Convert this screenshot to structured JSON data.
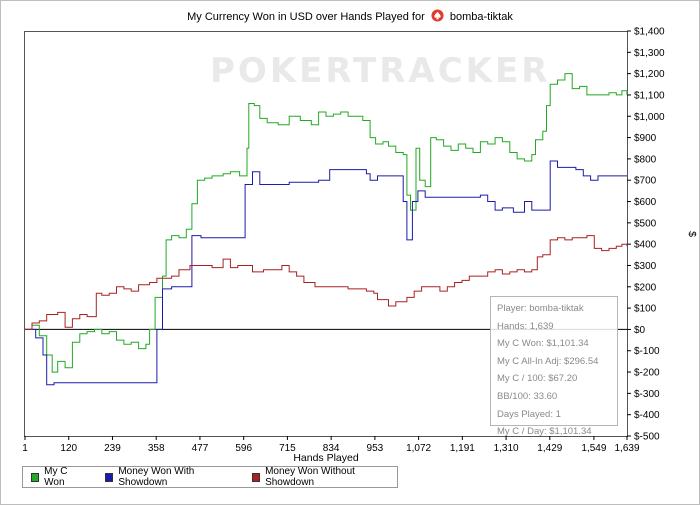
{
  "title_prefix": "My Currency Won in USD over Hands Played for",
  "player_name": "bomba-tiktak",
  "watermark": "POKERTRACKER",
  "chart_data": {
    "type": "line",
    "xlabel": "Hands Played",
    "ylabel": "$",
    "xlim": [
      1,
      1639
    ],
    "ylim": [
      -500,
      1400
    ],
    "x_ticks": [
      1,
      120,
      239,
      358,
      477,
      596,
      715,
      834,
      953,
      1072,
      1191,
      1310,
      1429,
      1549,
      1639
    ],
    "x_tick_labels": [
      "1",
      "120",
      "239",
      "358",
      "477",
      "596",
      "715",
      "834",
      "953",
      "1,072",
      "1,191",
      "1,310",
      "1,429",
      "1,549",
      "1,639"
    ],
    "y_ticks": [
      -500,
      -400,
      -300,
      -200,
      -100,
      0,
      100,
      200,
      300,
      400,
      500,
      600,
      700,
      800,
      900,
      1000,
      1100,
      1200,
      1300,
      1400
    ],
    "y_tick_labels": [
      "$-500",
      "$-400",
      "$-300",
      "$-200",
      "$-100",
      "$0",
      "$100",
      "$200",
      "$300",
      "$400",
      "$500",
      "$600",
      "$700",
      "$800",
      "$900",
      "$1,000",
      "$1,100",
      "$1,200",
      "$1,300",
      "$1,400"
    ],
    "grid": false,
    "legend_position": "bottom-left",
    "series": [
      {
        "name": "My C Won",
        "color": "#22aa22",
        "points": [
          [
            1,
            0
          ],
          [
            20,
            20
          ],
          [
            40,
            -30
          ],
          [
            60,
            -120
          ],
          [
            75,
            -200
          ],
          [
            90,
            -150
          ],
          [
            110,
            -180
          ],
          [
            130,
            -60
          ],
          [
            150,
            -20
          ],
          [
            170,
            -10
          ],
          [
            190,
            0
          ],
          [
            210,
            -20
          ],
          [
            230,
            -10
          ],
          [
            250,
            -50
          ],
          [
            270,
            -70
          ],
          [
            290,
            -60
          ],
          [
            310,
            -90
          ],
          [
            330,
            -70
          ],
          [
            340,
            0
          ],
          [
            355,
            150
          ],
          [
            375,
            250
          ],
          [
            385,
            420
          ],
          [
            400,
            440
          ],
          [
            420,
            430
          ],
          [
            440,
            470
          ],
          [
            455,
            590
          ],
          [
            470,
            700
          ],
          [
            490,
            710
          ],
          [
            510,
            720
          ],
          [
            540,
            730
          ],
          [
            560,
            740
          ],
          [
            585,
            720
          ],
          [
            605,
            850
          ],
          [
            610,
            1060
          ],
          [
            625,
            1050
          ],
          [
            640,
            990
          ],
          [
            660,
            970
          ],
          [
            690,
            960
          ],
          [
            720,
            1000
          ],
          [
            750,
            980
          ],
          [
            780,
            960
          ],
          [
            800,
            1020
          ],
          [
            820,
            1000
          ],
          [
            840,
            1010
          ],
          [
            860,
            1020
          ],
          [
            880,
            1000
          ],
          [
            920,
            980
          ],
          [
            940,
            900
          ],
          [
            955,
            870
          ],
          [
            975,
            880
          ],
          [
            990,
            860
          ],
          [
            1010,
            830
          ],
          [
            1030,
            820
          ],
          [
            1040,
            630
          ],
          [
            1050,
            560
          ],
          [
            1065,
            850
          ],
          [
            1075,
            700
          ],
          [
            1090,
            670
          ],
          [
            1105,
            900
          ],
          [
            1120,
            890
          ],
          [
            1140,
            860
          ],
          [
            1160,
            840
          ],
          [
            1180,
            870
          ],
          [
            1200,
            850
          ],
          [
            1220,
            830
          ],
          [
            1240,
            880
          ],
          [
            1260,
            870
          ],
          [
            1280,
            900
          ],
          [
            1300,
            880
          ],
          [
            1320,
            830
          ],
          [
            1340,
            800
          ],
          [
            1360,
            790
          ],
          [
            1380,
            820
          ],
          [
            1390,
            890
          ],
          [
            1410,
            930
          ],
          [
            1420,
            1050
          ],
          [
            1430,
            1150
          ],
          [
            1450,
            1170
          ],
          [
            1470,
            1200
          ],
          [
            1490,
            1130
          ],
          [
            1510,
            1140
          ],
          [
            1530,
            1100
          ],
          [
            1560,
            1100
          ],
          [
            1590,
            1110
          ],
          [
            1610,
            1100
          ],
          [
            1625,
            1120
          ],
          [
            1639,
            1100
          ]
        ]
      },
      {
        "name": "Money Won With Showdown",
        "color": "#1c1ca8",
        "points": [
          [
            1,
            0
          ],
          [
            30,
            -40
          ],
          [
            50,
            -120
          ],
          [
            60,
            -260
          ],
          [
            80,
            -250
          ],
          [
            120,
            -250
          ],
          [
            150,
            -250
          ],
          [
            200,
            -250
          ],
          [
            250,
            -250
          ],
          [
            300,
            -250
          ],
          [
            355,
            -250
          ],
          [
            360,
            0
          ],
          [
            375,
            190
          ],
          [
            400,
            200
          ],
          [
            420,
            200
          ],
          [
            440,
            200
          ],
          [
            455,
            440
          ],
          [
            480,
            430
          ],
          [
            510,
            430
          ],
          [
            540,
            430
          ],
          [
            580,
            430
          ],
          [
            600,
            680
          ],
          [
            620,
            740
          ],
          [
            640,
            680
          ],
          [
            680,
            680
          ],
          [
            720,
            690
          ],
          [
            760,
            690
          ],
          [
            800,
            700
          ],
          [
            830,
            750
          ],
          [
            870,
            750
          ],
          [
            900,
            750
          ],
          [
            930,
            730
          ],
          [
            940,
            700
          ],
          [
            960,
            720
          ],
          [
            980,
            720
          ],
          [
            1000,
            720
          ],
          [
            1030,
            600
          ],
          [
            1040,
            420
          ],
          [
            1055,
            600
          ],
          [
            1070,
            650
          ],
          [
            1090,
            620
          ],
          [
            1120,
            620
          ],
          [
            1160,
            620
          ],
          [
            1200,
            620
          ],
          [
            1240,
            630
          ],
          [
            1260,
            600
          ],
          [
            1280,
            560
          ],
          [
            1300,
            570
          ],
          [
            1330,
            550
          ],
          [
            1360,
            600
          ],
          [
            1380,
            560
          ],
          [
            1410,
            560
          ],
          [
            1430,
            790
          ],
          [
            1450,
            760
          ],
          [
            1480,
            760
          ],
          [
            1500,
            750
          ],
          [
            1520,
            720
          ],
          [
            1540,
            700
          ],
          [
            1560,
            720
          ],
          [
            1600,
            720
          ],
          [
            1639,
            720
          ]
        ]
      },
      {
        "name": "Money Won Without Showdown",
        "color": "#a82222",
        "points": [
          [
            1,
            0
          ],
          [
            20,
            30
          ],
          [
            40,
            40
          ],
          [
            60,
            70
          ],
          [
            90,
            80
          ],
          [
            110,
            10
          ],
          [
            130,
            50
          ],
          [
            150,
            70
          ],
          [
            170,
            60
          ],
          [
            185,
            60
          ],
          [
            195,
            170
          ],
          [
            210,
            160
          ],
          [
            230,
            170
          ],
          [
            250,
            200
          ],
          [
            270,
            190
          ],
          [
            290,
            180
          ],
          [
            310,
            210
          ],
          [
            340,
            220
          ],
          [
            360,
            240
          ],
          [
            380,
            240
          ],
          [
            400,
            250
          ],
          [
            420,
            280
          ],
          [
            450,
            300
          ],
          [
            480,
            300
          ],
          [
            510,
            290
          ],
          [
            540,
            330
          ],
          [
            560,
            290
          ],
          [
            580,
            300
          ],
          [
            600,
            300
          ],
          [
            620,
            270
          ],
          [
            650,
            280
          ],
          [
            680,
            280
          ],
          [
            700,
            300
          ],
          [
            720,
            270
          ],
          [
            740,
            250
          ],
          [
            760,
            220
          ],
          [
            790,
            200
          ],
          [
            820,
            200
          ],
          [
            850,
            200
          ],
          [
            880,
            190
          ],
          [
            900,
            190
          ],
          [
            930,
            180
          ],
          [
            950,
            170
          ],
          [
            960,
            140
          ],
          [
            990,
            110
          ],
          [
            1010,
            130
          ],
          [
            1040,
            150
          ],
          [
            1060,
            180
          ],
          [
            1080,
            200
          ],
          [
            1100,
            200
          ],
          [
            1130,
            180
          ],
          [
            1150,
            200
          ],
          [
            1170,
            220
          ],
          [
            1190,
            230
          ],
          [
            1210,
            250
          ],
          [
            1230,
            250
          ],
          [
            1260,
            270
          ],
          [
            1280,
            280
          ],
          [
            1300,
            260
          ],
          [
            1320,
            270
          ],
          [
            1340,
            280
          ],
          [
            1360,
            270
          ],
          [
            1380,
            280
          ],
          [
            1395,
            340
          ],
          [
            1410,
            350
          ],
          [
            1430,
            420
          ],
          [
            1450,
            430
          ],
          [
            1470,
            420
          ],
          [
            1490,
            430
          ],
          [
            1510,
            430
          ],
          [
            1530,
            440
          ],
          [
            1550,
            380
          ],
          [
            1570,
            370
          ],
          [
            1590,
            380
          ],
          [
            1610,
            390
          ],
          [
            1625,
            400
          ],
          [
            1639,
            390
          ]
        ]
      }
    ]
  },
  "stats_box": {
    "player": "Player: bomba-tiktak",
    "hands": "Hands: 1,639",
    "won": "My C Won: $1,101.34",
    "allin": "My C All-In Adj: $296.54",
    "per100": "My C / 100: $67.20",
    "bb100": "BB/100: 33.60",
    "days": "Days Played: 1",
    "perday": "My C / Day: $1,101.34"
  }
}
